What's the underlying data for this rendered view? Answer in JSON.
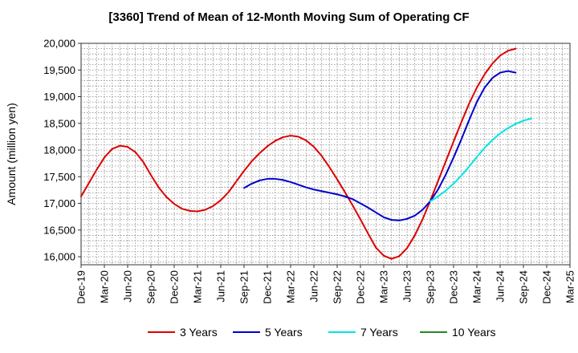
{
  "chart_data": {
    "type": "line",
    "title": "[3360]  Trend of Mean of 12-Month Moving Sum of Operating CF",
    "xlabel": "",
    "ylabel": "Amount (million yen)",
    "ylim": [
      15850,
      20000
    ],
    "y_ticks": [
      16000,
      16500,
      17000,
      17500,
      18000,
      18500,
      19000,
      19500,
      20000
    ],
    "y_tick_labels": [
      "16,000",
      "16,500",
      "17,000",
      "17,500",
      "18,000",
      "18,500",
      "19,000",
      "19,500",
      "20,000"
    ],
    "x_tick_labels": [
      "Dec-19",
      "Mar-20",
      "Jun-20",
      "Sep-20",
      "Dec-20",
      "Mar-21",
      "Jun-21",
      "Sep-21",
      "Dec-21",
      "Mar-22",
      "Jun-22",
      "Sep-22",
      "Dec-22",
      "Mar-23",
      "Jun-23",
      "Sep-23",
      "Dec-23",
      "Mar-24",
      "Jun-24",
      "Sep-24",
      "Dec-24",
      "Mar-25"
    ],
    "grid": true,
    "legend_position": "bottom",
    "series": [
      {
        "name": "3 Years",
        "color": "#dd0000",
        "x_start": "Dec-19",
        "values": [
          17130,
          17380,
          17630,
          17860,
          18020,
          18080,
          18060,
          17960,
          17780,
          17530,
          17300,
          17120,
          16990,
          16900,
          16860,
          16850,
          16880,
          16950,
          17060,
          17210,
          17410,
          17610,
          17790,
          17940,
          18070,
          18170,
          18240,
          18270,
          18250,
          18180,
          18060,
          17890,
          17680,
          17450,
          17210,
          16960,
          16700,
          16430,
          16170,
          16020,
          15960,
          16010,
          16160,
          16400,
          16700,
          17050,
          17420,
          17790,
          18160,
          18520,
          18870,
          19170,
          19420,
          19620,
          19770,
          19860,
          19900
        ]
      },
      {
        "name": "5 Years",
        "color": "#0000cc",
        "x_start": "Sep-21",
        "values": [
          17290,
          17370,
          17430,
          17460,
          17460,
          17440,
          17400,
          17350,
          17300,
          17260,
          17230,
          17200,
          17170,
          17130,
          17080,
          17000,
          16920,
          16830,
          16740,
          16690,
          16680,
          16710,
          16770,
          16880,
          17040,
          17260,
          17540,
          17860,
          18200,
          18560,
          18900,
          19170,
          19350,
          19450,
          19480,
          19450
        ]
      },
      {
        "name": "7 Years",
        "color": "#00e5e5",
        "x_start": "Sep-23",
        "values": [
          17040,
          17130,
          17240,
          17370,
          17520,
          17690,
          17870,
          18040,
          18190,
          18310,
          18410,
          18490,
          18550,
          18590
        ]
      },
      {
        "name": "10 Years",
        "color": "#228b22",
        "x_start": "Sep-23",
        "values": []
      }
    ]
  }
}
